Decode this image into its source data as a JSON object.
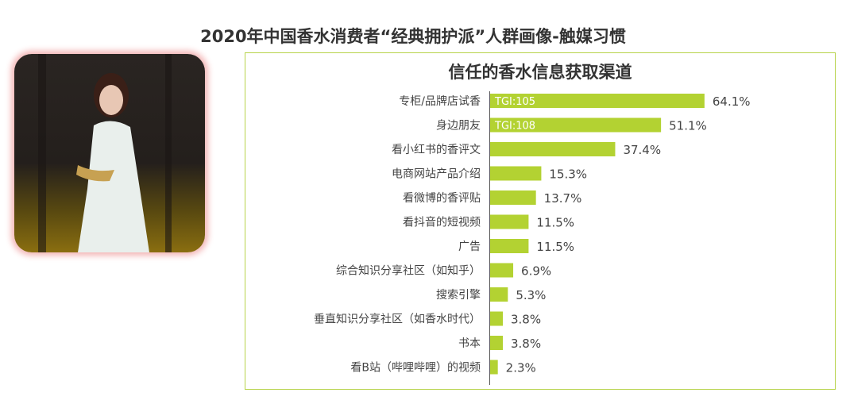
{
  "header": {
    "title": "2020年中国香水消费者“经典拥护派”人群画像-触媒习惯"
  },
  "colors": {
    "bar": "#b3d232",
    "border": "#b7d34a",
    "text": "#444444"
  },
  "chart_data": {
    "type": "bar",
    "orientation": "horizontal",
    "title": "信任的香水信息获取渠道",
    "categories": [
      "专柜/品牌店试香",
      "身边朋友",
      "看小红书的香评文",
      "电商网站产品介绍",
      "看微博的香评贴",
      "看抖音的短视频",
      "广告",
      "综合知识分享社区（如知乎）",
      "搜索引擎",
      "垂直知识分享社区（如香水时代）",
      "书本",
      "看B站（哔哩哔哩）的视频"
    ],
    "values": [
      64.1,
      51.1,
      37.4,
      15.3,
      13.7,
      11.5,
      11.5,
      6.9,
      5.3,
      3.8,
      3.8,
      2.3
    ],
    "value_labels": [
      "64.1%",
      "51.1%",
      "37.4%",
      "15.3%",
      "13.7%",
      "11.5%",
      "11.5%",
      "6.9%",
      "5.3%",
      "3.8%",
      "3.8%",
      "2.3%"
    ],
    "bar_annotations": [
      "TGI:105",
      "TGI:108",
      "",
      "",
      "",
      "",
      "",
      "",
      "",
      "",
      "",
      ""
    ],
    "xlim": [
      0,
      70
    ]
  }
}
